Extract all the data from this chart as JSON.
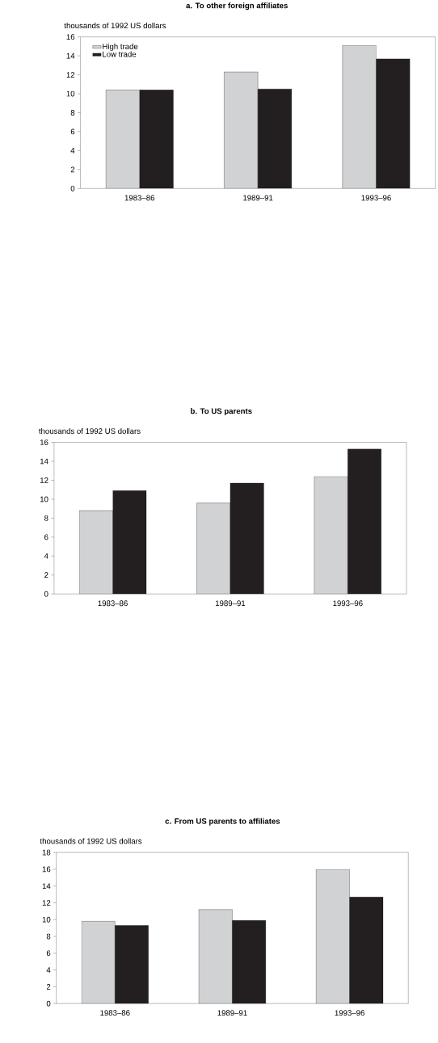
{
  "chart_data": [
    {
      "type": "bar",
      "title": "a. To other foreign affiliates",
      "ylabel": "thousands of 1992 US dollars",
      "categories": [
        "1983–86",
        "1989–91",
        "1993–96"
      ],
      "series": [
        {
          "name": "High trade",
          "color": "#d1d2d4",
          "values": [
            10.4,
            12.3,
            15.1
          ]
        },
        {
          "name": "Low trade",
          "color": "#231f20",
          "values": [
            10.4,
            10.5,
            13.7
          ]
        }
      ],
      "ylim": [
        0,
        16
      ],
      "yticks": [
        0,
        2,
        4,
        6,
        8,
        10,
        12,
        14,
        16
      ],
      "legend": "top left"
    },
    {
      "type": "bar",
      "title": "b. To US parents",
      "ylabel": "thousands of 1992 US dollars",
      "categories": [
        "1983–86",
        "1989–91",
        "1993–96"
      ],
      "series": [
        {
          "color": "#d1d2d4",
          "values": [
            8.8,
            9.6,
            12.4
          ]
        },
        {
          "color": "#231f20",
          "values": [
            10.9,
            11.7,
            15.3
          ]
        }
      ],
      "ylim": [
        0,
        16
      ],
      "yticks": [
        0,
        2,
        4,
        6,
        8,
        10,
        12,
        14,
        16
      ]
    },
    {
      "type": "bar",
      "title": "c. From US parents to affiliates",
      "ylabel": "thousands of 1992 US dollars",
      "categories": [
        "1983–86",
        "1989–91",
        "1993–96"
      ],
      "series": [
        {
          "color": "#d1d2d4",
          "values": [
            9.8,
            11.2,
            16.0
          ]
        },
        {
          "color": "#231f20",
          "values": [
            9.3,
            9.9,
            12.7
          ]
        }
      ],
      "ylim": [
        0,
        18
      ],
      "yticks": [
        0,
        2,
        4,
        6,
        8,
        10,
        12,
        14,
        16,
        18
      ]
    }
  ]
}
